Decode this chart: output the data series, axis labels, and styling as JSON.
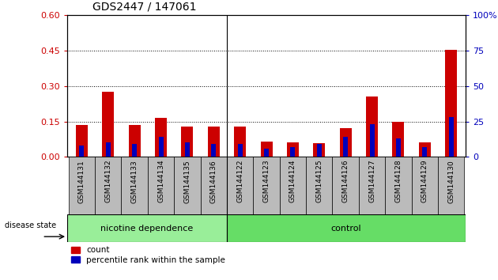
{
  "title": "GDS2447 / 147061",
  "samples": [
    "GSM144131",
    "GSM144132",
    "GSM144133",
    "GSM144134",
    "GSM144135",
    "GSM144136",
    "GSM144122",
    "GSM144123",
    "GSM144124",
    "GSM144125",
    "GSM144126",
    "GSM144127",
    "GSM144128",
    "GSM144129",
    "GSM144130"
  ],
  "red_values": [
    0.135,
    0.275,
    0.135,
    0.165,
    0.13,
    0.128,
    0.128,
    0.065,
    0.062,
    0.058,
    0.12,
    0.255,
    0.15,
    0.062,
    0.455
  ],
  "blue_values": [
    8,
    10,
    9,
    14,
    10,
    9,
    9,
    6,
    7,
    9,
    14,
    23,
    13,
    7,
    28
  ],
  "nicotine_count": 6,
  "control_count": 9,
  "ylim_left": [
    0,
    0.6
  ],
  "ylim_right": [
    0,
    100
  ],
  "yticks_left": [
    0,
    0.15,
    0.3,
    0.45,
    0.6
  ],
  "yticks_right": [
    0,
    25,
    50,
    75,
    100
  ],
  "red_color": "#CC0000",
  "blue_color": "#0000BB",
  "nicotine_color": "#99EE99",
  "control_color": "#66DD66",
  "background_plot": "#FFFFFF",
  "bar_bg_color": "#BBBBBB",
  "grid_color": "#000000",
  "bar_width": 0.45,
  "blue_bar_width": 0.18,
  "legend_count": "count",
  "legend_pct": "percentile rank within the sample",
  "disease_state_label": "disease state",
  "nicotine_label": "nicotine dependence",
  "control_label": "control"
}
